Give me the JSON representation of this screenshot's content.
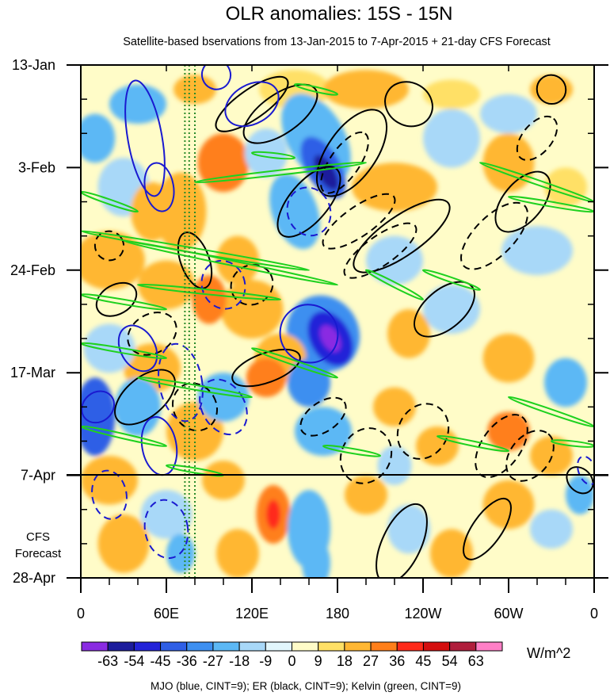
{
  "chart_data": {
    "type": "heatmap",
    "title": "OLR anomalies: 15S - 15N",
    "subtitle": "Satellite-based bservations from 13-Jan-2015 to 7-Apr-2015 + 21-day CFS Forecast",
    "x_tick_labels": [
      "0",
      "60E",
      "120E",
      "180",
      "120W",
      "60W",
      "0"
    ],
    "x_tick_lons": [
      0,
      60,
      120,
      180,
      240,
      300,
      360
    ],
    "xlim": [
      0,
      360
    ],
    "y_tick_labels": [
      "13-Jan",
      "3-Feb",
      "24-Feb",
      "17-Mar",
      "7-Apr",
      "28-Apr"
    ],
    "y_tick_days": [
      0,
      21,
      42,
      63,
      84,
      105
    ],
    "ylim_days": [
      0,
      105
    ],
    "observation_end_day": 84,
    "forecast_label_line1": "CFS",
    "forecast_label_line2": "Forecast",
    "colorbar": {
      "levels": [
        "-63",
        "-54",
        "-45",
        "-36",
        "-27",
        "-18",
        "-9",
        "0",
        "9",
        "18",
        "27",
        "36",
        "45",
        "54",
        "63"
      ],
      "colors": [
        "#8a2be2",
        "#1c1c9c",
        "#2323d8",
        "#2f5fe6",
        "#3d8ff0",
        "#5cb8f5",
        "#a8d8f8",
        "#e2f6fc",
        "#fffcc8",
        "#ffe066",
        "#ffb733",
        "#ff7f1a",
        "#ff2a1a",
        "#d40f0f",
        "#b01e3c",
        "#ff7fc6"
      ],
      "units": "W/m^2"
    },
    "contours_legend": "MJO (blue, CINT=9); ER (black, CINT=9); Kelvin (green, CINT=9)",
    "series_colors": {
      "mjo": "#1a1ad0",
      "er": "#000000",
      "kelvin": "#1fd11f"
    }
  }
}
